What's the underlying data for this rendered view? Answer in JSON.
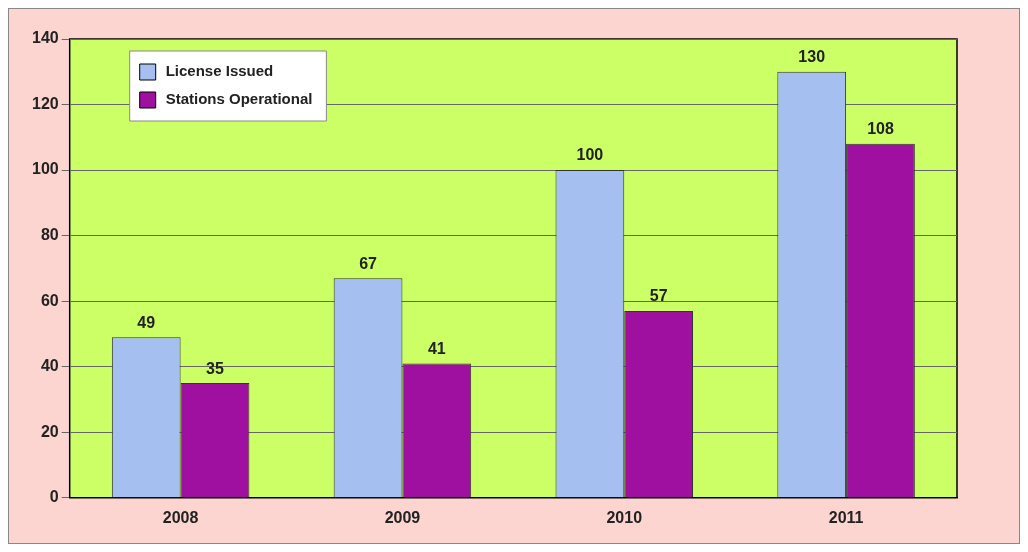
{
  "chart_data": {
    "type": "bar",
    "categories": [
      "2008",
      "2009",
      "2010",
      "2011"
    ],
    "series": [
      {
        "name": "License Issued",
        "color": "#a4bff0",
        "values": [
          49,
          67,
          100,
          130
        ]
      },
      {
        "name": "Stations Operational",
        "color": "#a010a0",
        "values": [
          35,
          41,
          57,
          108
        ]
      }
    ],
    "ylim": [
      0,
      140
    ],
    "yticks": [
      0,
      20,
      40,
      60,
      80,
      100,
      120,
      140
    ],
    "grid": "y",
    "legend": "top left",
    "data_labels": true
  }
}
